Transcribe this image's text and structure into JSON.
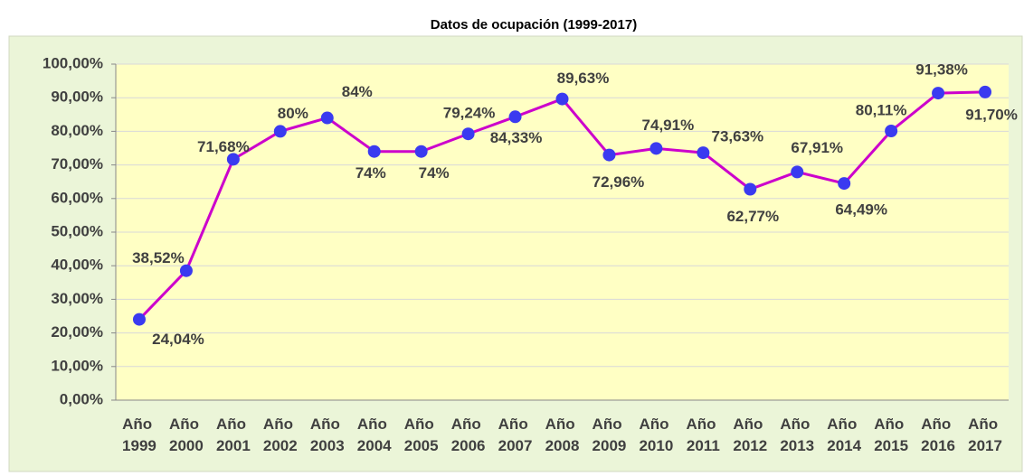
{
  "chart_data": {
    "type": "line",
    "title": "Datos de ocupación  (1999-2017)",
    "categories": [
      "Año 1999",
      "Año 2000",
      "Año 2001",
      "Año 2002",
      "Año 2003",
      "Año 2004",
      "Año 2005",
      "Año 2006",
      "Año 2007",
      "Año 2008",
      "Año 2009",
      "Año 2010",
      "Año 2011",
      "Año 2012",
      "Año 2013",
      "Año 2014",
      "Año 2015",
      "Año 2016",
      "Año 2017"
    ],
    "values": [
      24.04,
      38.52,
      71.68,
      80,
      84,
      74,
      74,
      79.24,
      84.33,
      89.63,
      72.96,
      74.91,
      73.63,
      62.77,
      67.91,
      64.49,
      80.11,
      91.38,
      91.7
    ],
    "value_labels": [
      "24,04%",
      "38,52%",
      "71,68%",
      "80%",
      "84%",
      "74%",
      "74%",
      "79,24%",
      "84,33%",
      "89,63%",
      "72,96%",
      "74,91%",
      "73,63%",
      "62,77%",
      "67,91%",
      "64,49%",
      "80,11%",
      "91,38%",
      "91,70%"
    ],
    "color": "#cc00cc",
    "marker_color": "#3a3af0",
    "ylim": [
      0,
      100
    ],
    "yticks": [
      {
        "value": 0,
        "label": "0,00%"
      },
      {
        "value": 10,
        "label": "10,00%"
      },
      {
        "value": 20,
        "label": "20,00%"
      },
      {
        "value": 30,
        "label": "30,00%"
      },
      {
        "value": 40,
        "label": "40,00%"
      },
      {
        "value": 50,
        "label": "50,00%"
      },
      {
        "value": 60,
        "label": "60,00%"
      },
      {
        "value": 70,
        "label": "70,00%"
      },
      {
        "value": 80,
        "label": "80,00%"
      },
      {
        "value": 90,
        "label": "90,00%"
      },
      {
        "value": 100,
        "label": "100,00%"
      }
    ],
    "grid": true
  }
}
